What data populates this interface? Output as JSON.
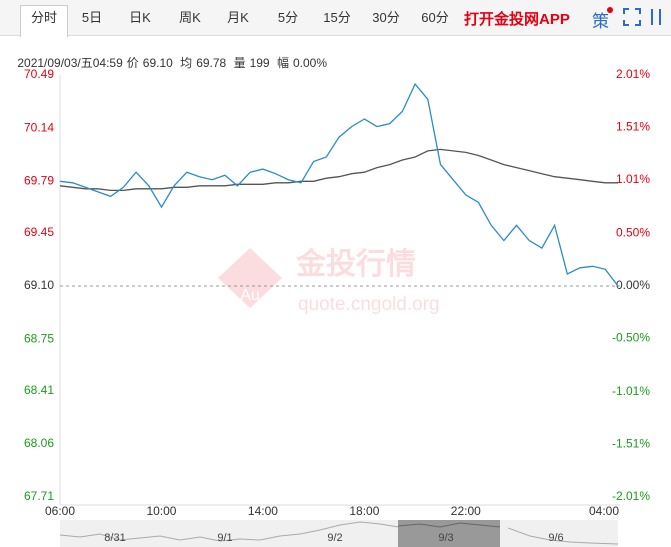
{
  "tabs": [
    "分时",
    "5日",
    "日K",
    "周K",
    "月K",
    "5分",
    "15分",
    "30分",
    "60分"
  ],
  "app_link": "打开金投网APP",
  "strategy": "策",
  "info": {
    "datetime": "2021/09/03/五04:59",
    "price_label": "价",
    "price": "69.10",
    "avg_label": "均",
    "avg": "69.78",
    "volume_label": "量",
    "volume": "199",
    "change_label": "幅",
    "change": "0.00%"
  },
  "watermark": {
    "logo": "Au",
    "name": "金投行情",
    "url": "quote.cngold.org"
  },
  "chart_data": {
    "type": "line",
    "x": [
      "06:00",
      "06:30",
      "07:00",
      "07:30",
      "08:00",
      "08:30",
      "09:00",
      "09:30",
      "10:00",
      "10:30",
      "11:00",
      "11:30",
      "12:00",
      "12:30",
      "13:00",
      "13:30",
      "14:00",
      "14:30",
      "15:00",
      "15:30",
      "16:00",
      "16:30",
      "17:00",
      "17:30",
      "18:00",
      "18:30",
      "19:00",
      "19:30",
      "20:00",
      "20:30",
      "21:00",
      "21:30",
      "22:00",
      "22:30",
      "23:00",
      "23:30",
      "00:00",
      "00:30",
      "01:00",
      "01:30",
      "02:00",
      "02:30",
      "03:00",
      "03:30",
      "04:00"
    ],
    "series": [
      {
        "name": "价",
        "color": "#2a8cc8",
        "values": [
          69.79,
          69.78,
          69.75,
          69.72,
          69.69,
          69.75,
          69.85,
          69.76,
          69.62,
          69.76,
          69.85,
          69.82,
          69.8,
          69.83,
          69.76,
          69.85,
          69.87,
          69.84,
          69.8,
          69.78,
          69.92,
          69.95,
          70.08,
          70.15,
          70.2,
          70.15,
          70.17,
          70.25,
          70.43,
          70.33,
          69.9,
          69.8,
          69.7,
          69.65,
          69.5,
          69.4,
          69.5,
          69.4,
          69.35,
          69.5,
          69.18,
          69.22,
          69.23,
          69.21,
          69.1
        ]
      },
      {
        "name": "均",
        "color": "#555555",
        "values": [
          69.76,
          69.75,
          69.74,
          69.74,
          69.73,
          69.73,
          69.74,
          69.74,
          69.74,
          69.75,
          69.75,
          69.76,
          69.76,
          69.76,
          69.77,
          69.77,
          69.77,
          69.78,
          69.78,
          69.79,
          69.79,
          69.81,
          69.82,
          69.84,
          69.85,
          69.88,
          69.9,
          69.93,
          69.95,
          69.99,
          70.0,
          69.99,
          69.98,
          69.96,
          69.93,
          69.9,
          69.88,
          69.86,
          69.84,
          69.82,
          69.81,
          69.8,
          69.79,
          69.78,
          69.78
        ]
      }
    ],
    "xticks": [
      "06:00",
      "10:00",
      "14:00",
      "18:00",
      "22:00",
      "04:00"
    ],
    "ylim": [
      67.71,
      70.49
    ],
    "yticks": [
      70.49,
      70.14,
      69.79,
      69.45,
      {
        "value": 69.1,
        "label": "69.10"
      },
      68.75,
      68.41,
      68.06,
      67.71
    ],
    "y2lim": [
      -2.01,
      2.01
    ],
    "y2ticks": [
      {
        "value": 2.01,
        "label": "2.01%"
      },
      {
        "value": 1.51,
        "label": "1.51%"
      },
      {
        "value": 1.01,
        "label": "1.01%"
      },
      {
        "value": 0.5,
        "label": "0.50%"
      },
      {
        "value": 0,
        "label": "0.00%"
      },
      {
        "value": -0.5,
        "label": "-0.50%"
      },
      {
        "value": -1.01,
        "label": "-1.01%"
      },
      {
        "value": -1.51,
        "label": "-1.51%"
      },
      {
        "value": -2.01,
        "label": "-2.01%"
      }
    ],
    "up_color": "#e60012",
    "down_color": "#1a9c1a",
    "flat_color": "#333333",
    "navigator": [
      "8/31",
      "9/1",
      "9/2",
      "9/3",
      "9/6"
    ]
  }
}
